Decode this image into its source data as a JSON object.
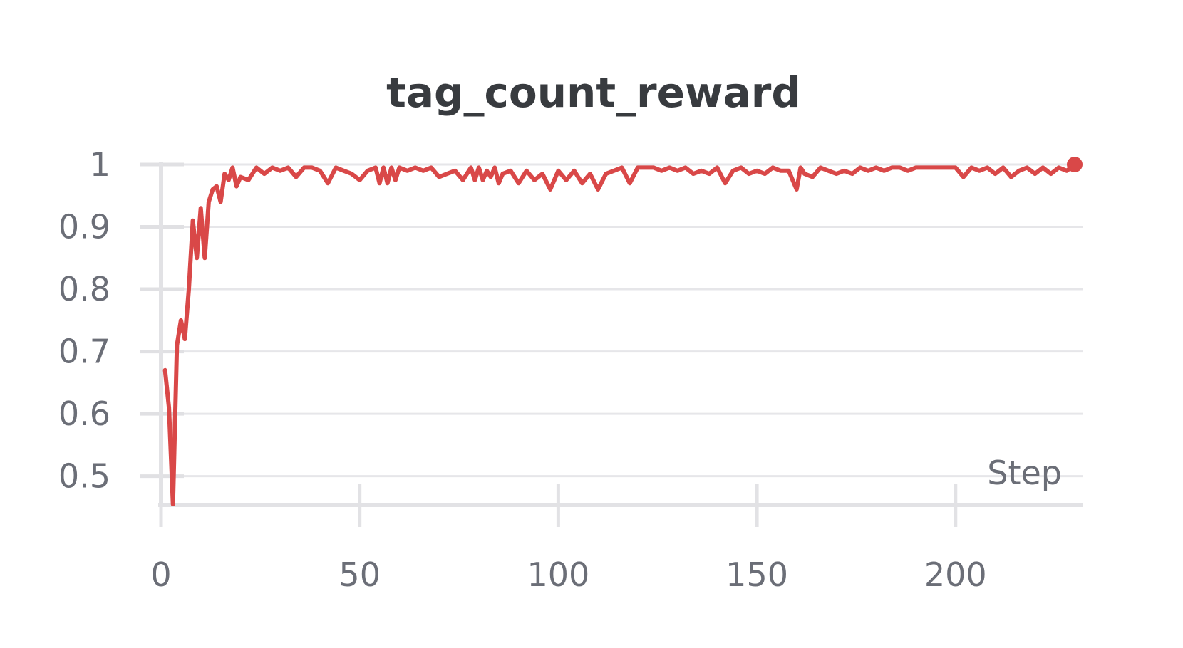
{
  "chart_data": {
    "type": "line",
    "title": "tag_count_reward",
    "xlabel": "Step",
    "ylabel": "",
    "xlim": [
      0,
      230
    ],
    "ylim": [
      0.455,
      1.0
    ],
    "xticks": [
      0,
      50,
      100,
      150,
      200
    ],
    "xtick_labels": [
      "0",
      "50",
      "100",
      "150",
      "200"
    ],
    "yticks": [
      0.5,
      0.6,
      0.7,
      0.8,
      0.9,
      1.0
    ],
    "ytick_labels": [
      "0.5",
      "0.6",
      "0.7",
      "0.8",
      "0.9",
      "1"
    ],
    "grid": true,
    "series": [
      {
        "color": "#d94848",
        "last_point_marker": true,
        "x": [
          1,
          2,
          3,
          4,
          5,
          6,
          7,
          8,
          9,
          10,
          11,
          12,
          13,
          14,
          15,
          16,
          17,
          18,
          19,
          20,
          22,
          24,
          26,
          28,
          30,
          32,
          34,
          36,
          38,
          40,
          42,
          44,
          46,
          48,
          50,
          52,
          54,
          55,
          56,
          57,
          58,
          59,
          60,
          62,
          64,
          66,
          68,
          70,
          72,
          74,
          76,
          78,
          79,
          80,
          81,
          82,
          83,
          84,
          85,
          86,
          88,
          90,
          92,
          94,
          96,
          98,
          100,
          102,
          104,
          106,
          108,
          110,
          112,
          114,
          116,
          118,
          120,
          124,
          126,
          128,
          130,
          132,
          134,
          136,
          138,
          140,
          142,
          144,
          146,
          148,
          150,
          152,
          154,
          156,
          158,
          160,
          161,
          162,
          164,
          166,
          168,
          170,
          172,
          174,
          176,
          178,
          180,
          182,
          184,
          186,
          188,
          190,
          192,
          194,
          196,
          198,
          200,
          202,
          204,
          206,
          208,
          210,
          212,
          214,
          216,
          218,
          220,
          222,
          224,
          226,
          228,
          230
        ],
        "y": [
          0.67,
          0.61,
          0.455,
          0.71,
          0.75,
          0.72,
          0.8,
          0.91,
          0.85,
          0.93,
          0.85,
          0.94,
          0.96,
          0.965,
          0.94,
          0.985,
          0.975,
          0.995,
          0.965,
          0.98,
          0.975,
          0.995,
          0.985,
          0.995,
          0.99,
          0.995,
          0.98,
          0.995,
          0.995,
          0.99,
          0.97,
          0.995,
          0.99,
          0.985,
          0.975,
          0.99,
          0.995,
          0.97,
          0.995,
          0.97,
          0.995,
          0.975,
          0.995,
          0.99,
          0.995,
          0.99,
          0.995,
          0.98,
          0.985,
          0.99,
          0.975,
          0.995,
          0.975,
          0.995,
          0.975,
          0.99,
          0.98,
          0.995,
          0.97,
          0.985,
          0.99,
          0.97,
          0.99,
          0.975,
          0.985,
          0.96,
          0.99,
          0.975,
          0.99,
          0.97,
          0.985,
          0.96,
          0.985,
          0.99,
          0.995,
          0.97,
          0.995,
          0.995,
          0.99,
          0.995,
          0.99,
          0.995,
          0.985,
          0.99,
          0.985,
          0.995,
          0.97,
          0.99,
          0.995,
          0.985,
          0.99,
          0.985,
          0.995,
          0.99,
          0.99,
          0.96,
          0.995,
          0.985,
          0.98,
          0.995,
          0.99,
          0.985,
          0.99,
          0.985,
          0.995,
          0.99,
          0.995,
          0.99,
          0.995,
          0.995,
          0.99,
          0.995,
          0.995,
          0.995,
          0.995,
          0.995,
          0.995,
          0.98,
          0.995,
          0.99,
          0.995,
          0.985,
          0.995,
          0.98,
          0.99,
          0.995,
          0.985,
          0.995,
          0.985,
          0.995,
          0.99,
          1.0
        ]
      }
    ]
  }
}
